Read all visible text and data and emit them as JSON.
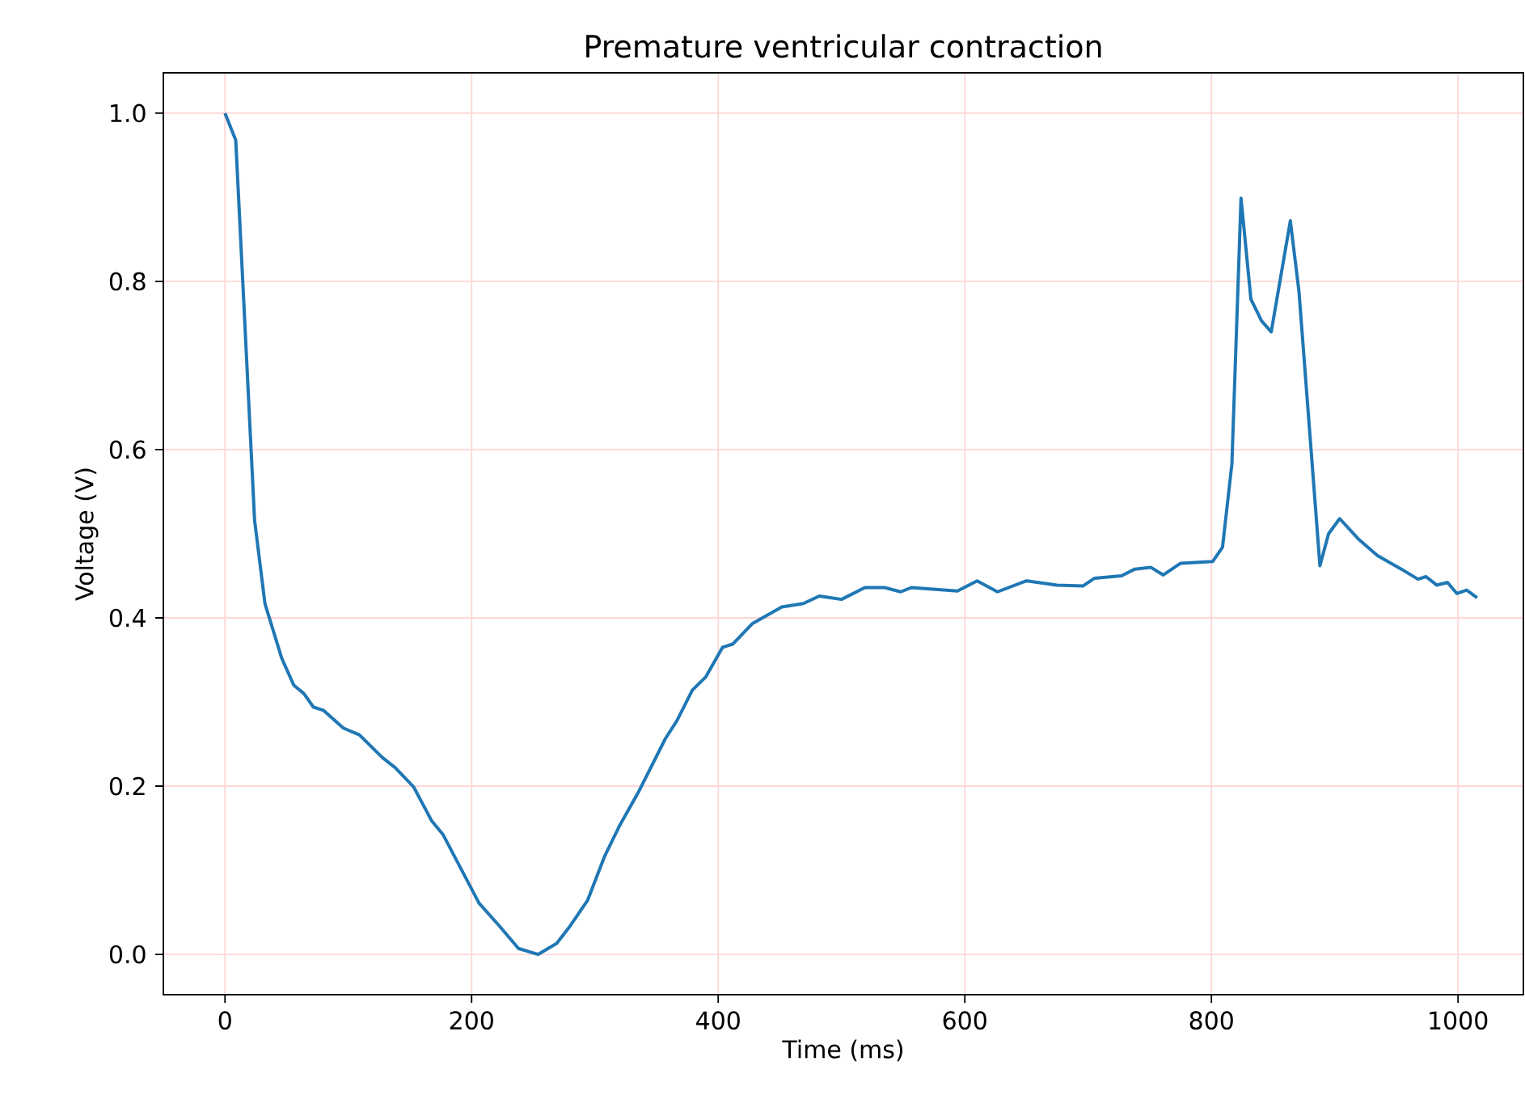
{
  "chart_data": {
    "type": "line",
    "title": "Premature ventricular contraction",
    "xlabel": "Time (ms)",
    "ylabel": "Voltage (V)",
    "x": [
      0,
      8.7,
      14.4,
      24,
      32.4,
      46,
      55.8,
      64,
      71.7,
      80,
      96,
      109,
      127.6,
      138,
      153,
      167.5,
      177,
      206,
      223,
      238,
      254,
      269,
      279,
      294,
      308,
      320,
      335,
      357,
      366.6,
      379,
      390,
      403.5,
      412,
      427.5,
      451.6,
      469,
      482,
      500,
      519,
      535,
      548,
      556.5,
      594,
      610,
      626.5,
      650,
      674.5,
      696,
      705,
      727,
      738,
      751,
      761,
      775,
      801,
      809,
      816.6,
      824,
      832,
      840.7,
      848.5,
      864,
      871,
      888,
      895,
      904,
      919,
      934.7,
      954,
      967.5,
      974,
      982.7,
      991.5,
      999,
      1007,
      1015.5
    ],
    "values": [
      1.0,
      0.968,
      0.8,
      0.516,
      0.417,
      0.352,
      0.32,
      0.31,
      0.294,
      0.29,
      0.269,
      0.261,
      0.234,
      0.222,
      0.199,
      0.159,
      0.142,
      0.061,
      0.033,
      0.007,
      0.0,
      0.013,
      0.032,
      0.064,
      0.117,
      0.153,
      0.192,
      0.256,
      0.278,
      0.314,
      0.33,
      0.365,
      0.369,
      0.393,
      0.413,
      0.417,
      0.426,
      0.422,
      0.436,
      0.436,
      0.431,
      0.436,
      0.432,
      0.444,
      0.431,
      0.444,
      0.439,
      0.438,
      0.447,
      0.45,
      0.458,
      0.46,
      0.451,
      0.465,
      0.467,
      0.484,
      0.583,
      0.899,
      0.779,
      0.753,
      0.74,
      0.872,
      0.788,
      0.462,
      0.5,
      0.518,
      0.494,
      0.474,
      0.458,
      0.446,
      0.449,
      0.439,
      0.442,
      0.429,
      0.433,
      0.424
    ],
    "color": "#1f77b4",
    "xlim": [
      -50,
      1053
    ],
    "ylim": [
      -0.048,
      1.048
    ],
    "xticks": [
      0,
      200,
      400,
      600,
      800,
      1000
    ],
    "yticks": [
      {
        "value": 0,
        "label": "0.0"
      },
      {
        "value": 0.2,
        "label": "0.2"
      },
      {
        "value": 0.4,
        "label": "0.4"
      },
      {
        "value": 0.6,
        "label": "0.6"
      },
      {
        "value": 0.8,
        "label": "0.8"
      },
      {
        "value": 1.0,
        "label": "1.0"
      }
    ],
    "grid": true
  }
}
